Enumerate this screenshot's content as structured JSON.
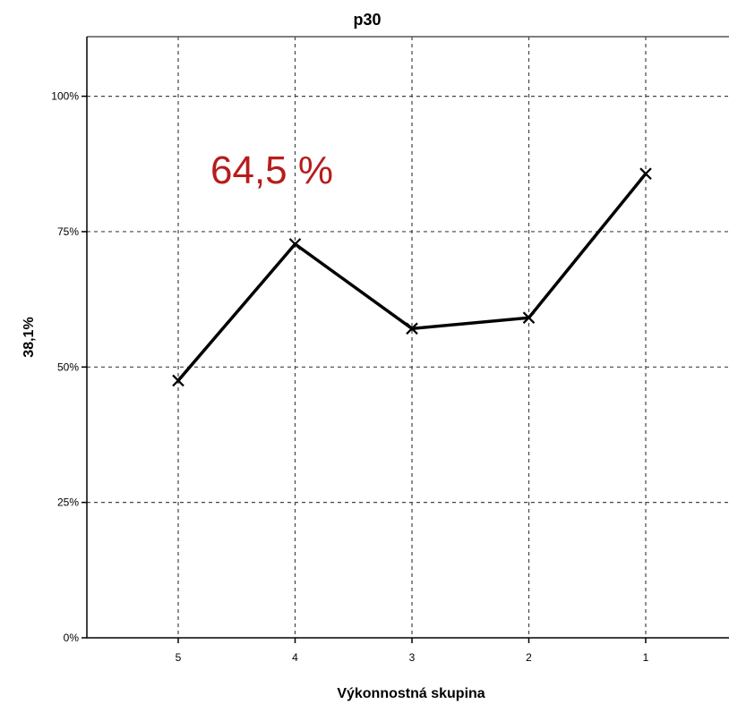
{
  "chart_data": {
    "type": "line",
    "title": "p30",
    "xlabel": "Výkonnostná skupina",
    "ylabel": "38,1%",
    "categories": [
      "5",
      "4",
      "3",
      "2",
      "1"
    ],
    "values": [
      47.5,
      72.7,
      57.1,
      59.1,
      85.7
    ],
    "yticks": [
      "0%",
      "25%",
      "50%",
      "75%",
      "100%"
    ],
    "ytick_values": [
      0,
      25,
      50,
      75,
      100
    ],
    "ylim": [
      0,
      111
    ],
    "grid": true,
    "annotation": "64,5 %",
    "annotation_color": "#b71c1c",
    "line_color": "#000000",
    "marker": "x"
  }
}
